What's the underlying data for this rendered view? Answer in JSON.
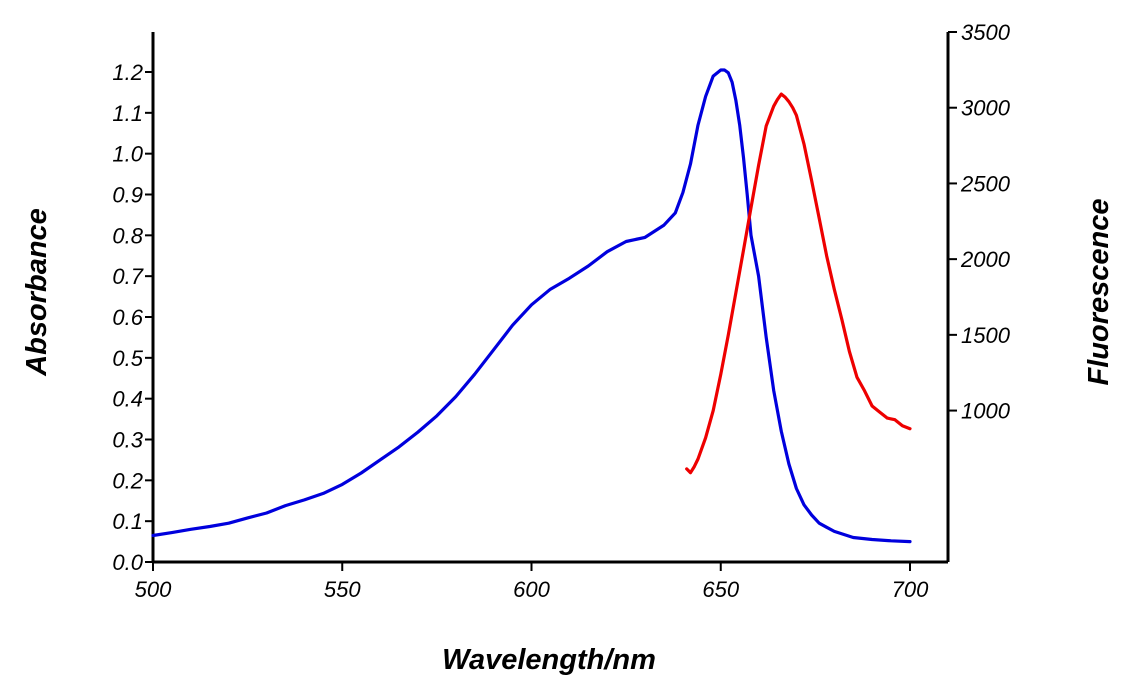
{
  "chart_data": {
    "type": "line",
    "title": "",
    "xlabel": "Wavelength/nm",
    "ylabel": "Absorbance",
    "y2label": "Fluorescence",
    "xlim": [
      500,
      700
    ],
    "ylim": [
      0,
      1.2
    ],
    "y2lim": [
      0,
      3500
    ],
    "x_ticks": [
      "500",
      "550",
      "600",
      "650",
      "700"
    ],
    "y_ticks": [
      "0.0",
      "0.1",
      "0.2",
      "0.3",
      "0.4",
      "0.5",
      "0.6",
      "0.7",
      "0.8",
      "0.9",
      "1.0",
      "1.1",
      "1.2"
    ],
    "y2_ticks": [
      "1000",
      "1500",
      "2000",
      "2500",
      "3000",
      "3500"
    ],
    "grid": false,
    "colors": {
      "absorbance": "#0000dd",
      "fluorescence": "#ee0000"
    },
    "series": [
      {
        "axis": "left",
        "x": [
          500,
          505,
          510,
          515,
          520,
          525,
          530,
          535,
          540,
          545,
          550,
          555,
          560,
          565,
          570,
          575,
          580,
          585,
          590,
          595,
          600,
          605,
          610,
          615,
          620,
          625,
          630,
          635,
          638,
          640,
          642,
          644,
          646,
          648,
          650,
          651,
          652,
          653,
          654,
          655,
          656,
          657,
          658,
          660,
          662,
          664,
          666,
          668,
          670,
          672,
          674,
          676,
          678,
          680,
          685,
          690,
          695,
          700
        ],
        "y": [
          0.065,
          0.072,
          0.08,
          0.087,
          0.095,
          0.108,
          0.12,
          0.138,
          0.152,
          0.168,
          0.19,
          0.218,
          0.25,
          0.282,
          0.318,
          0.358,
          0.405,
          0.46,
          0.52,
          0.58,
          0.63,
          0.668,
          0.695,
          0.725,
          0.76,
          0.785,
          0.795,
          0.825,
          0.855,
          0.905,
          0.975,
          1.07,
          1.14,
          1.19,
          1.205,
          1.205,
          1.198,
          1.175,
          1.13,
          1.07,
          0.99,
          0.9,
          0.8,
          0.7,
          0.55,
          0.42,
          0.32,
          0.24,
          0.18,
          0.14,
          0.115,
          0.095,
          0.085,
          0.075,
          0.06,
          0.055,
          0.052,
          0.05
        ]
      },
      {
        "axis": "right",
        "x": [
          641,
          642,
          643,
          644,
          646,
          648,
          650,
          652,
          654,
          656,
          658,
          660,
          662,
          664,
          665,
          666,
          667,
          668,
          669,
          670,
          672,
          674,
          676,
          678,
          680,
          682,
          684,
          686,
          688,
          690,
          692,
          694,
          696,
          698,
          700
        ],
        "y": [
          615,
          590,
          630,
          680,
          820,
          1000,
          1240,
          1500,
          1780,
          2060,
          2340,
          2620,
          2880,
          3010,
          3055,
          3090,
          3070,
          3040,
          3000,
          2950,
          2760,
          2520,
          2270,
          2020,
          1800,
          1600,
          1390,
          1220,
          1130,
          1030,
          990,
          950,
          940,
          900,
          880
        ]
      }
    ]
  }
}
